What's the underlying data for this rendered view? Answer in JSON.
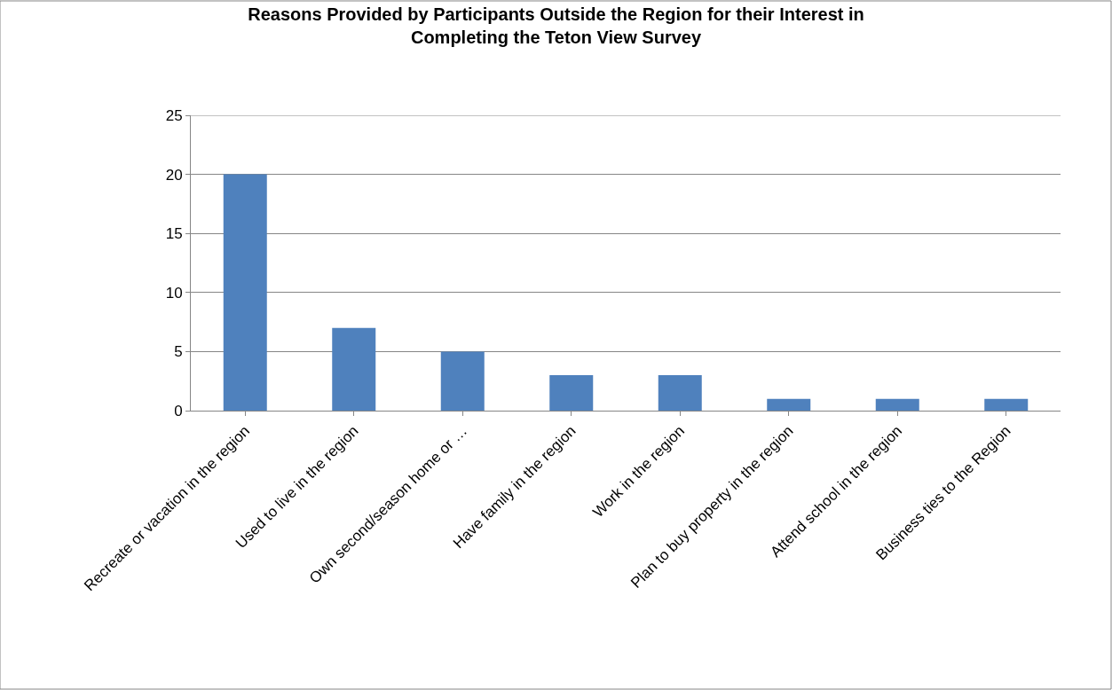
{
  "chart_data": {
    "type": "bar",
    "title": "Reasons Provided by Participants Outside the Region for their Interest in Completing the Teton View Survey",
    "categories": [
      "Recreate or vacation in the region",
      "Used to live in the region",
      "Own second/season home or …",
      "Have family in the region",
      "Work in the region",
      "Plan to buy property in the region",
      "Attend school in the region",
      "Business ties to the Region"
    ],
    "values": [
      20,
      7,
      5,
      3,
      3,
      1,
      1,
      1
    ],
    "color": "#4f81bd",
    "ylim": [
      0,
      25
    ],
    "yticks": [
      0,
      5,
      10,
      15,
      20,
      25
    ],
    "grid": "y"
  }
}
